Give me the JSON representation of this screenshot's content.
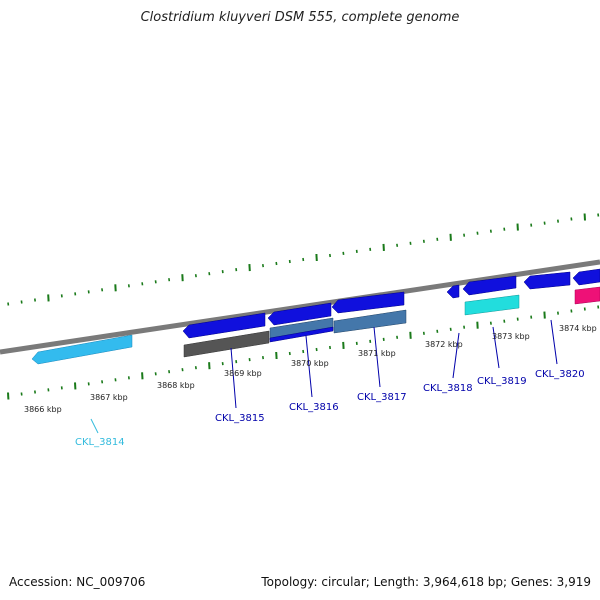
{
  "title": "Clostridium kluyveri DSM 555, complete genome",
  "footer": {
    "accession": "Accession: NC_009706",
    "stats": "Topology: circular; Length: 3,964,618 bp; Genes: 3,919"
  },
  "colors": {
    "backbone": "#7a7a7a",
    "ticks": "#1a7a1a",
    "label": "#0000aa",
    "label_light": "#33bbdd",
    "cds_blue": "#1010dd",
    "light_blue": "#33bbee",
    "steel_blue": "#4477aa",
    "cyan": "#22dddd",
    "grey": "#555555",
    "magenta": "#ee1177"
  },
  "scale_labels": [
    "3866 kbp",
    "3867 kbp",
    "3868 kbp",
    "3869 kbp",
    "3870 kbp",
    "3871 kbp",
    "3872 kbp",
    "3873 kbp",
    "3874 kbp"
  ],
  "gene_labels": [
    "CKL_3814",
    "CKL_3815",
    "CKL_3816",
    "CKL_3817",
    "CKL_3818",
    "CKL_3819",
    "CKL_3820"
  ]
}
